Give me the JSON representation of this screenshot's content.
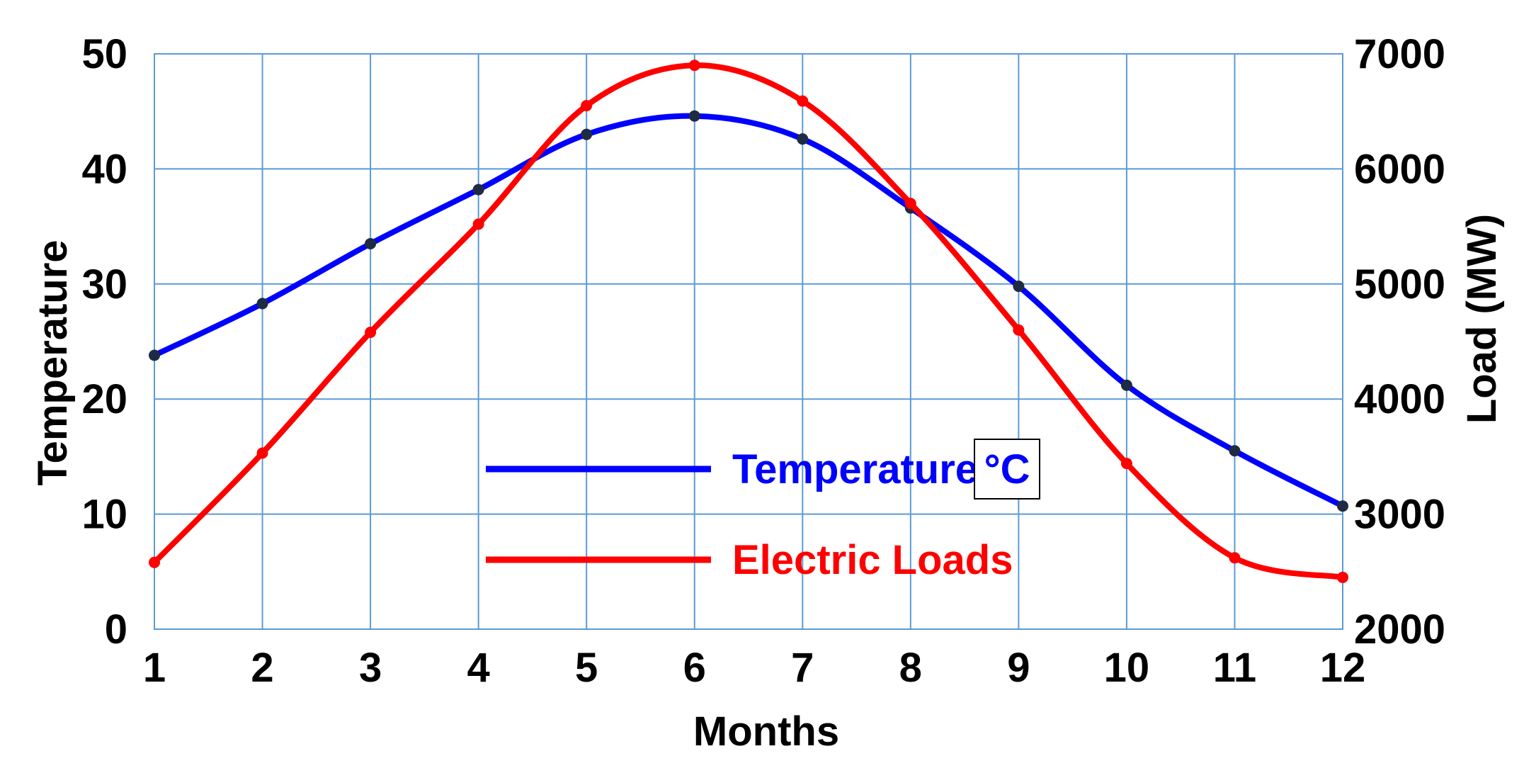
{
  "chart_data": {
    "type": "line",
    "title": "",
    "xlabel": "Months",
    "ylabel_left": "Temperature",
    "ylabel_right": "Load (MW)",
    "x": [
      1,
      2,
      3,
      4,
      5,
      6,
      7,
      8,
      9,
      10,
      11,
      12
    ],
    "x_tick_labels": [
      "1",
      "2",
      "3",
      "4",
      "5",
      "6",
      "7",
      "8",
      "9",
      "10",
      "11",
      "12"
    ],
    "y_left_range": [
      0,
      50
    ],
    "y_left_ticks": [
      "0",
      "10",
      "20",
      "30",
      "40",
      "50"
    ],
    "y_right_range": [
      2000,
      7000
    ],
    "y_right_ticks": [
      "2000",
      "3000",
      "4000",
      "5000",
      "6000",
      "7000"
    ],
    "grid": true,
    "legend_position": "center",
    "series": [
      {
        "name": "Temperature",
        "unit_label": "°C",
        "axis": "left",
        "color": "#0000ff",
        "values": [
          23.8,
          28.3,
          33.5,
          38.2,
          43.0,
          44.6,
          42.6,
          36.6,
          29.8,
          21.2,
          15.5,
          10.7
        ]
      },
      {
        "name": "Electric Loads",
        "axis": "right",
        "color": "#ff0000",
        "values": [
          2580,
          3530,
          4580,
          5520,
          6550,
          6900,
          6590,
          5700,
          4600,
          3440,
          2620,
          2450
        ]
      }
    ]
  }
}
